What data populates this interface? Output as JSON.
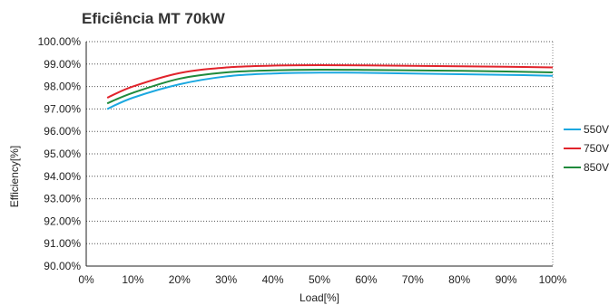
{
  "chart_data": {
    "type": "line",
    "title": "Eficiência MT 70kW",
    "xlabel": "Load[%]",
    "ylabel": "Efficiency[%]",
    "xlim": [
      0,
      100
    ],
    "ylim": [
      90,
      100
    ],
    "x_ticks": [
      "0%",
      "10%",
      "20%",
      "30%",
      "40%",
      "50%",
      "60%",
      "70%",
      "80%",
      "90%",
      "100%"
    ],
    "y_ticks": [
      "90.00%",
      "91.00%",
      "92.00%",
      "93.00%",
      "94.00%",
      "95.00%",
      "96.00%",
      "97.00%",
      "98.00%",
      "99.00%",
      "100.00%"
    ],
    "grid": "horizontal dotted",
    "legend_position": "right",
    "x": [
      4.5,
      10,
      20,
      30,
      40,
      50,
      60,
      70,
      80,
      90,
      100
    ],
    "series": [
      {
        "name": "550V",
        "color": "#1ba8e0",
        "values": [
          97.0,
          97.5,
          98.1,
          98.45,
          98.58,
          98.62,
          98.61,
          98.58,
          98.55,
          98.52,
          98.48
        ]
      },
      {
        "name": "750V",
        "color": "#e1232b",
        "values": [
          97.5,
          98.0,
          98.6,
          98.85,
          98.93,
          98.95,
          98.94,
          98.92,
          98.9,
          98.88,
          98.85
        ]
      },
      {
        "name": "850V",
        "color": "#1f8a3c",
        "values": [
          97.25,
          97.72,
          98.35,
          98.63,
          98.72,
          98.75,
          98.74,
          98.72,
          98.7,
          98.67,
          98.63
        ]
      }
    ]
  }
}
